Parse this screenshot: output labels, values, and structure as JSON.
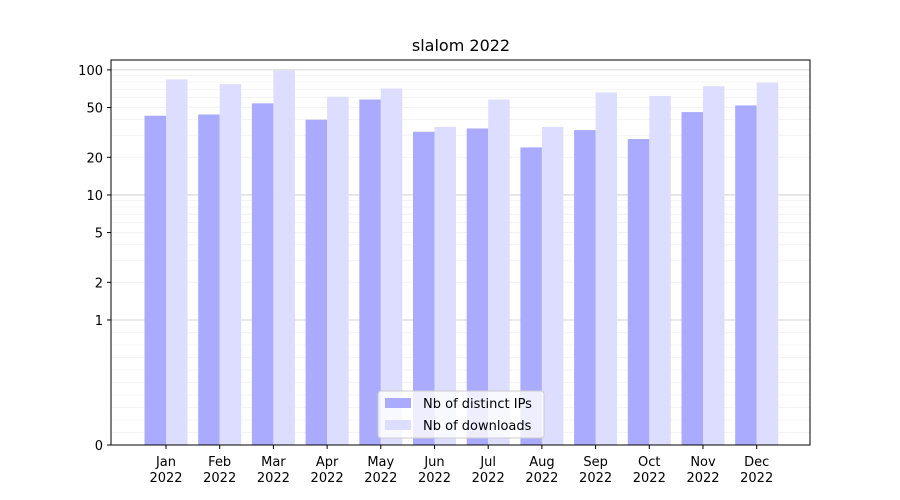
{
  "chart_data": {
    "type": "bar",
    "title": "slalom 2022",
    "xlabel": "",
    "ylabel": "",
    "categories": [
      "Jan\n2022",
      "Feb\n2022",
      "Mar\n2022",
      "Apr\n2022",
      "May\n2022",
      "Jun\n2022",
      "Jul\n2022",
      "Aug\n2022",
      "Sep\n2022",
      "Oct\n2022",
      "Nov\n2022",
      "Dec\n2022"
    ],
    "series": [
      {
        "name": "Nb of distinct IPs",
        "color": "#aaaaff",
        "values": [
          43,
          44,
          54,
          40,
          58,
          32,
          34,
          24,
          33,
          28,
          46,
          52
        ]
      },
      {
        "name": "Nb of downloads",
        "color": "#ddddff",
        "values": [
          84,
          77,
          99,
          61,
          71,
          35,
          58,
          35,
          66,
          62,
          74,
          79
        ]
      }
    ],
    "yscale": "symlog",
    "ylim": [
      0,
      120
    ],
    "yticks": [
      0,
      1,
      2,
      5,
      10,
      20,
      50,
      100
    ],
    "ytick_labels": [
      "0",
      "1",
      "2",
      "5",
      "10",
      "20",
      "50",
      "100"
    ],
    "grid": true,
    "legend_position": "lower center"
  }
}
